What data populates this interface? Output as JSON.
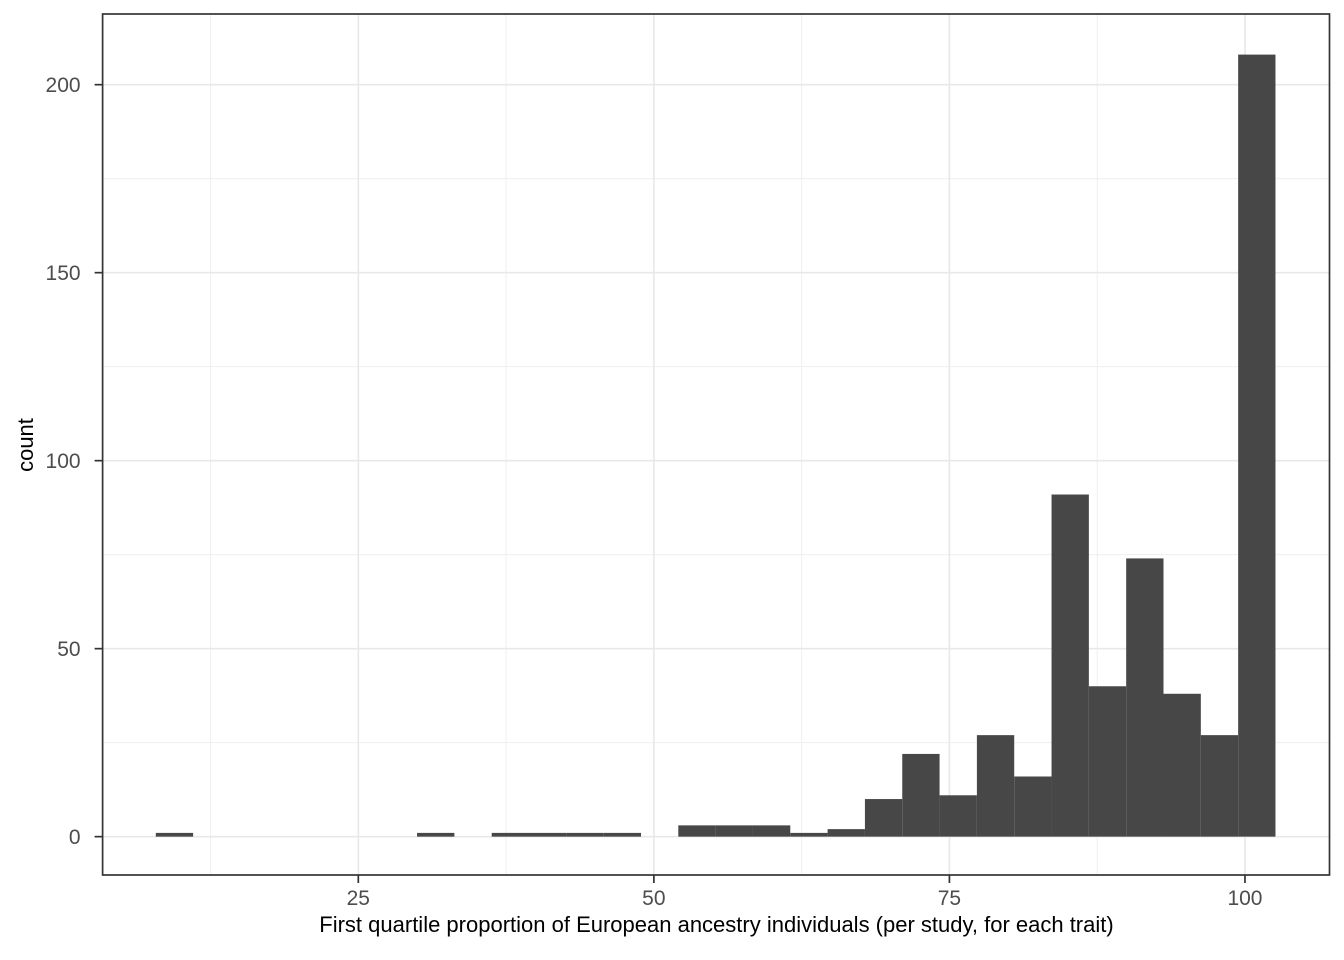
{
  "chart_data": {
    "type": "bar",
    "subtype": "histogram",
    "title": "",
    "xlabel": "First quartile proportion of European ancestry individuals (per study, for each trait)",
    "ylabel": "count",
    "bins": {
      "start": 7.87,
      "width": 3.157,
      "counts": [
        1,
        0,
        0,
        0,
        0,
        0,
        0,
        1,
        0,
        1,
        1,
        1,
        1,
        0,
        3,
        3,
        3,
        1,
        2,
        10,
        22,
        11,
        27,
        16,
        91,
        40,
        74,
        38,
        27,
        208
      ]
    },
    "x_ticks": [
      25,
      50,
      75,
      100
    ],
    "x_minor_ticks": [
      12.5,
      37.5,
      62.5,
      87.5
    ],
    "y_ticks": [
      0,
      50,
      100,
      150,
      200
    ],
    "y_minor_ticks": [
      25,
      75,
      125,
      175
    ],
    "x_tick_labels": [
      "25",
      "50",
      "75",
      "100"
    ],
    "y_tick_labels": [
      "0",
      "50",
      "100",
      "150",
      "200"
    ],
    "x_range": [
      3.37,
      107.15
    ],
    "y_range": [
      -10.2,
      218.8
    ],
    "grid": true,
    "legend": false,
    "colors": {
      "bar_fill": "#474747",
      "grid_major": "#E8E8E8",
      "grid_minor": "#EFEFEF",
      "panel_border": "#343434",
      "tick_mark": "#333333",
      "tick_label": "#4D4D4D",
      "axis_title": "#000000",
      "background": "#FFFFFF"
    }
  }
}
